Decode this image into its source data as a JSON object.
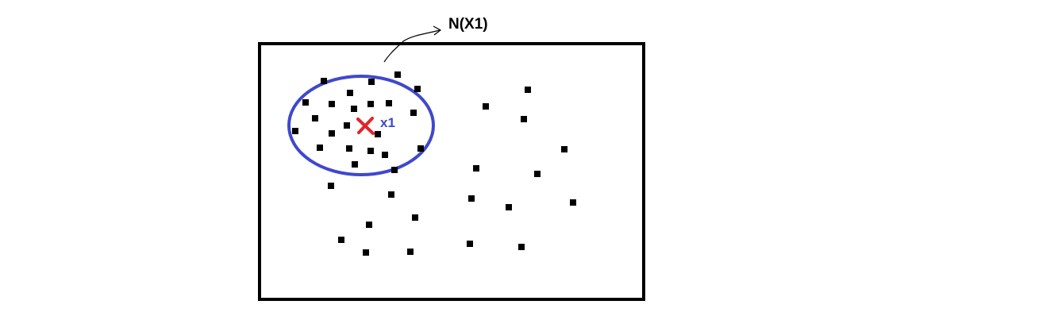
{
  "labels": {
    "neighborhood": "N(X1)",
    "point": "x1"
  },
  "colors": {
    "frame": "#000000",
    "points": "#000000",
    "ellipse": "#3f48cc",
    "center_mark": "#e0242b",
    "point_label": "#3f48cc",
    "neighborhood_label": "#000000",
    "pointer_line": "#000000"
  },
  "icons": {
    "center_mark": "cross-mark-icon",
    "pointer": "arrow-icon"
  }
}
